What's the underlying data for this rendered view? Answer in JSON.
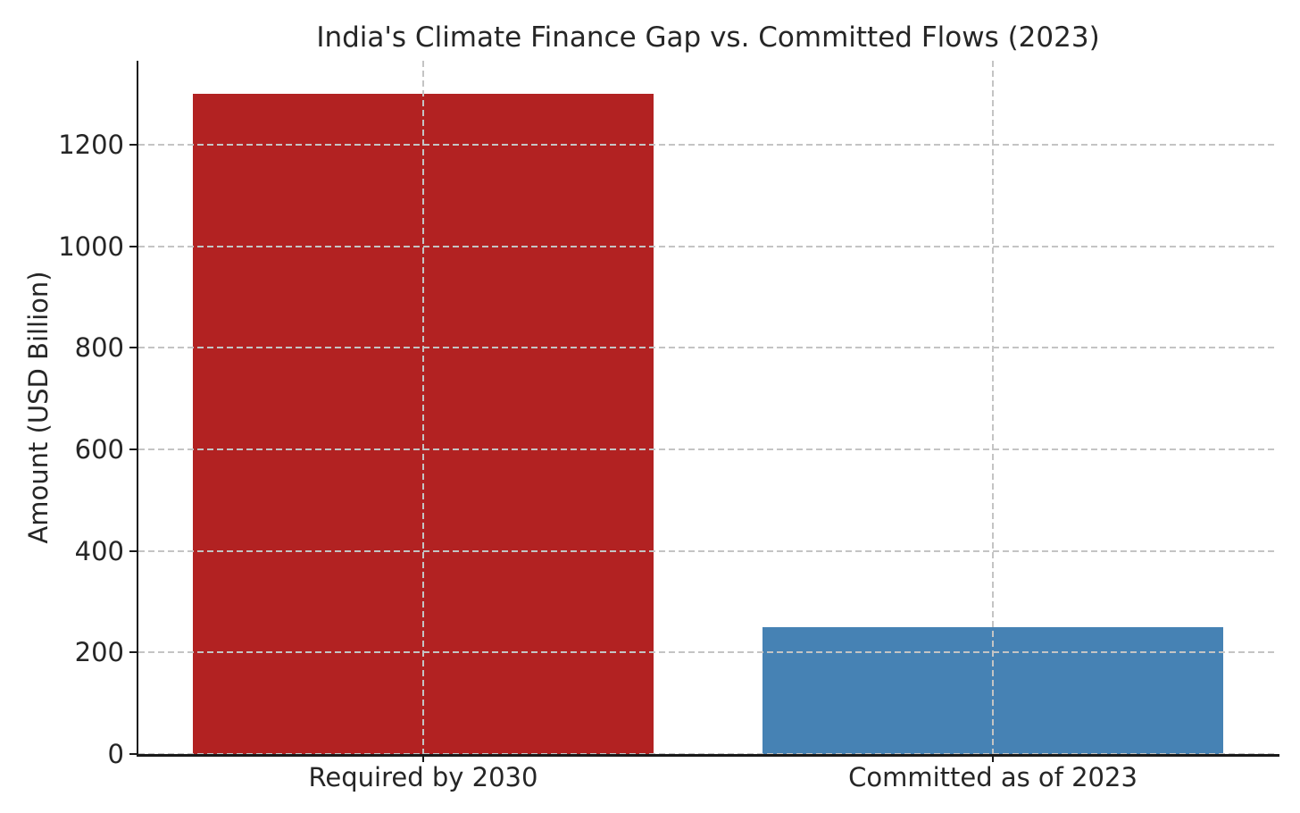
{
  "chart_data": {
    "type": "bar",
    "title": "India's Climate Finance Gap vs. Committed Flows (2023)",
    "ylabel": "Amount (USD Billion)",
    "xlabel": "",
    "categories": [
      "Required by 2030",
      "Committed as of 2023"
    ],
    "values": [
      1300,
      250
    ],
    "bar_colors": [
      "#b22222",
      "#4682b4"
    ],
    "yticks": [
      0,
      200,
      400,
      600,
      800,
      1000,
      1200
    ],
    "ylim": [
      0,
      1365
    ],
    "bar_width_fraction": 0.405,
    "grid": {
      "style": "dashed",
      "color": "#c4c4c4",
      "horizontal": true,
      "vertical": true,
      "drawn_above_bars": true
    },
    "legend": "none",
    "background": "#ffffff",
    "text_color": "#262626",
    "spine_color": "#1a1a1a",
    "spines_visible": [
      "left",
      "bottom"
    ]
  }
}
